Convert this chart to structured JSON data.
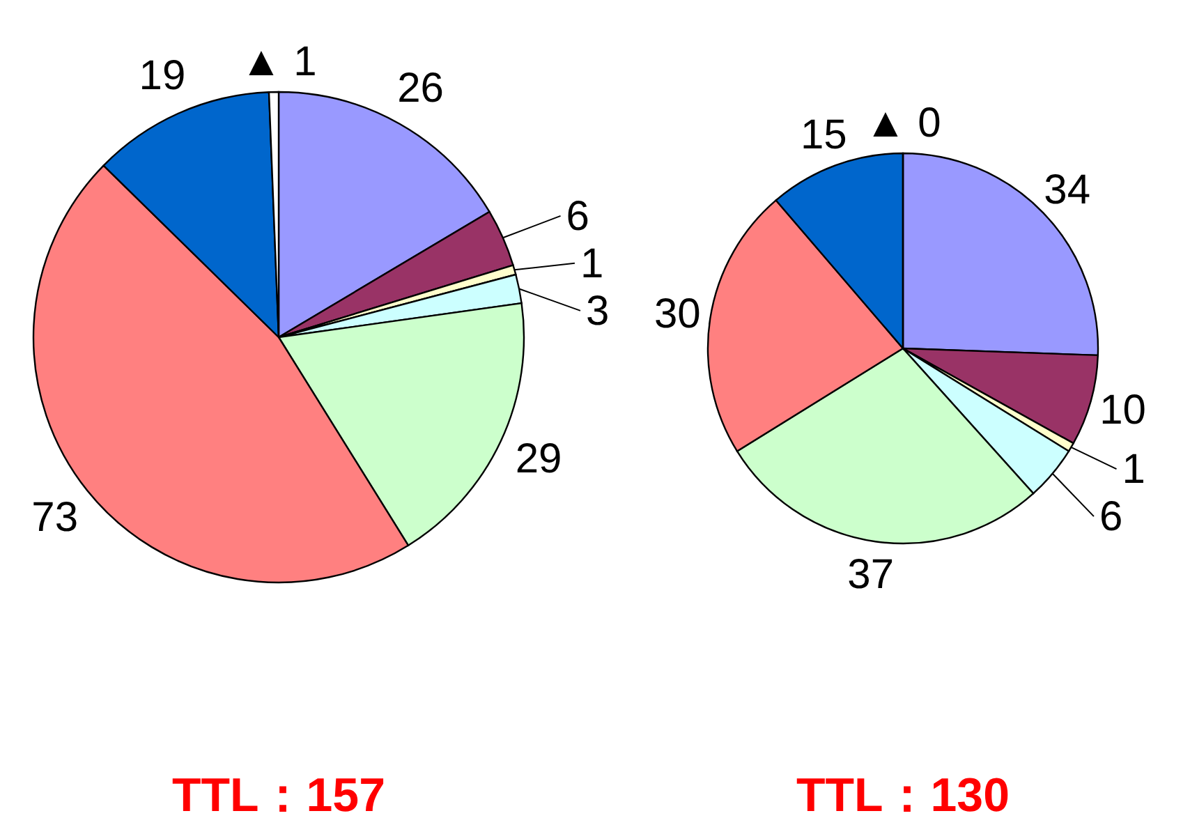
{
  "chart_data": [
    {
      "type": "pie",
      "title": "TTL：157",
      "categories": [
        null,
        null,
        null,
        null,
        null,
        null,
        null,
        null
      ],
      "values": [
        26,
        6,
        1,
        3,
        29,
        73,
        19,
        1
      ],
      "value_labels": [
        "26",
        "6",
        "1",
        "3",
        "29",
        "73",
        "19",
        "▲ 1"
      ],
      "colors": [
        "#9999ff",
        "#993366",
        "#ffffcc",
        "#ccffff",
        "#ccffcc",
        "#ff8080",
        "#0066cc",
        "#ffffff"
      ]
    },
    {
      "type": "pie",
      "title": "TTL：130",
      "categories": [
        null,
        null,
        null,
        null,
        null,
        null,
        null,
        null
      ],
      "values": [
        34,
        10,
        1,
        6,
        37,
        30,
        15,
        0
      ],
      "value_labels": [
        "34",
        "10",
        "1",
        "6",
        "37",
        "30",
        "15",
        "▲ 0"
      ],
      "colors": [
        "#9999ff",
        "#993366",
        "#ffffcc",
        "#ccffff",
        "#ccffcc",
        "#ff8080",
        "#0066cc",
        "#ffffff"
      ]
    }
  ]
}
